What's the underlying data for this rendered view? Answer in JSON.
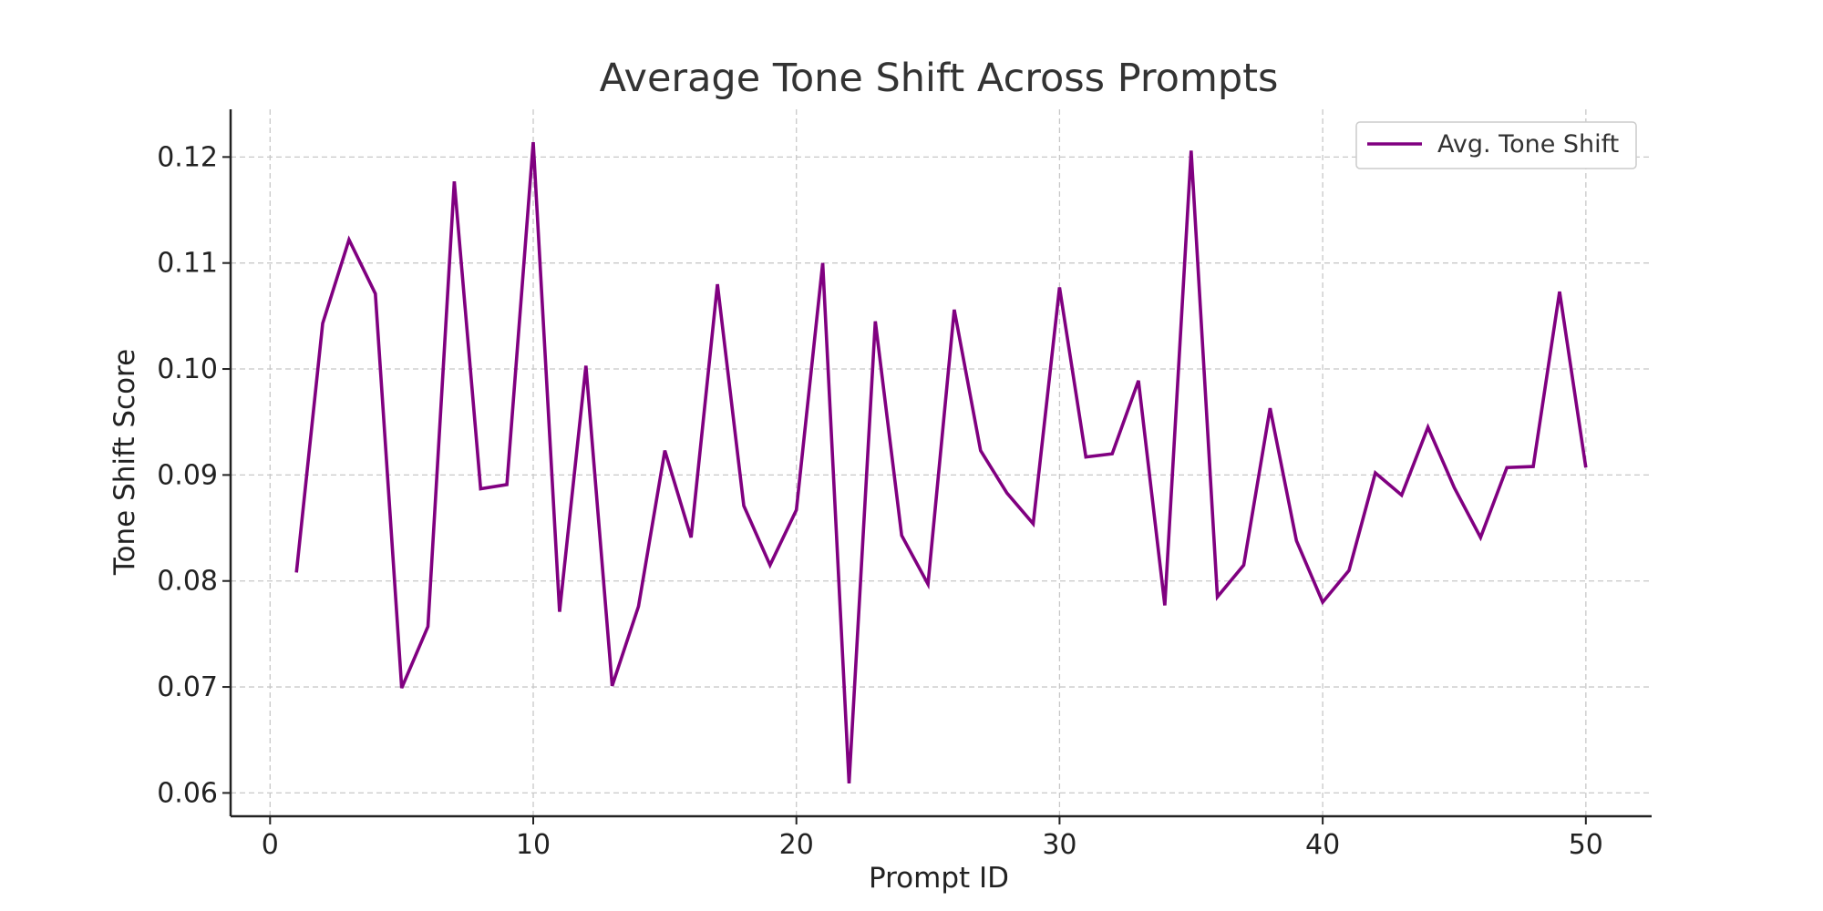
{
  "chart_data": {
    "type": "line",
    "title": "Average Tone Shift Across Prompts",
    "xlabel": "Prompt ID",
    "ylabel": "Tone Shift Score",
    "xlim": [
      -1.5,
      52.5
    ],
    "ylim": [
      0.0578,
      0.1245
    ],
    "xticks": [
      0,
      10,
      20,
      30,
      40,
      50
    ],
    "xtick_labels": [
      "0",
      "10",
      "20",
      "30",
      "40",
      "50"
    ],
    "yticks": [
      0.06,
      0.07,
      0.08,
      0.09,
      0.1,
      0.11,
      0.12
    ],
    "ytick_labels": [
      "0.06",
      "0.07",
      "0.08",
      "0.09",
      "0.10",
      "0.11",
      "0.12"
    ],
    "grid": true,
    "legend_position": "top-right",
    "series": [
      {
        "name": "Avg. Tone Shift",
        "color": "#800080",
        "x": [
          1,
          2,
          3,
          4,
          5,
          6,
          7,
          8,
          9,
          10,
          11,
          12,
          13,
          14,
          15,
          16,
          17,
          18,
          19,
          20,
          21,
          22,
          23,
          24,
          25,
          26,
          27,
          28,
          29,
          30,
          31,
          32,
          33,
          34,
          35,
          36,
          37,
          38,
          39,
          40,
          41,
          42,
          43,
          44,
          45,
          46,
          47,
          48,
          49,
          50
        ],
        "y": [
          0.0808,
          0.1043,
          0.1122,
          0.1071,
          0.0699,
          0.0757,
          0.1177,
          0.0887,
          0.0891,
          0.1214,
          0.0771,
          0.1003,
          0.0701,
          0.0776,
          0.0923,
          0.0841,
          0.108,
          0.0871,
          0.0815,
          0.0867,
          0.11,
          0.0609,
          0.1045,
          0.0843,
          0.0797,
          0.1056,
          0.0923,
          0.0883,
          0.0854,
          0.1077,
          0.0917,
          0.092,
          0.0989,
          0.0777,
          0.1206,
          0.0785,
          0.0815,
          0.0963,
          0.0838,
          0.078,
          0.081,
          0.0902,
          0.0881,
          0.0945,
          0.0888,
          0.0841,
          0.0907,
          0.0908,
          0.1073,
          0.0907
        ]
      }
    ]
  }
}
